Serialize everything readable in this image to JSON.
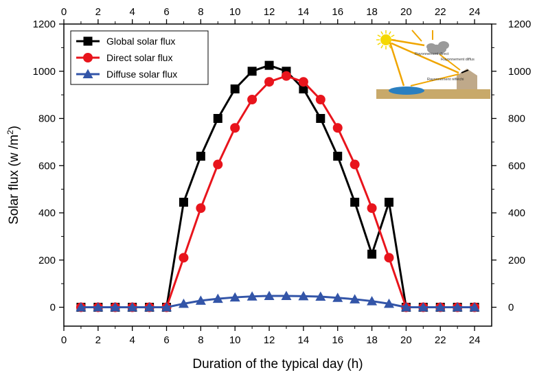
{
  "chart_data": {
    "type": "line",
    "title": "",
    "xlabel": "Duration of the typical day (h)",
    "ylabel": "Solar flux (w /m",
    "ylabel_superscript": "2",
    "ylabel_suffix": ")",
    "xlim": [
      0,
      25
    ],
    "ylim": [
      -80,
      1200
    ],
    "x_ticks": [
      0,
      2,
      4,
      6,
      8,
      10,
      12,
      14,
      16,
      18,
      20,
      22,
      24
    ],
    "y_ticks": [
      0,
      200,
      400,
      600,
      800,
      1000,
      1200
    ],
    "grid": false,
    "legend_position": "top-left",
    "x": [
      1,
      2,
      3,
      4,
      5,
      6,
      7,
      8,
      9,
      10,
      11,
      12,
      13,
      14,
      15,
      16,
      17,
      18,
      19,
      20,
      21,
      22,
      23,
      24
    ],
    "series": [
      {
        "name": "Global solar flux",
        "color": "#000000",
        "marker": "square",
        "values": [
          0,
          0,
          0,
          0,
          0,
          0,
          445,
          640,
          800,
          925,
          1000,
          1025,
          1000,
          925,
          800,
          640,
          445,
          225,
          445,
          0,
          0,
          0,
          0,
          0
        ]
      },
      {
        "name": "Direct solar flux",
        "color": "#e8141c",
        "marker": "circle",
        "values": [
          0,
          0,
          0,
          0,
          0,
          0,
          210,
          420,
          605,
          760,
          880,
          955,
          980,
          955,
          880,
          760,
          605,
          420,
          210,
          0,
          0,
          0,
          0,
          0
        ]
      },
      {
        "name": "Diffuse solar flux",
        "color": "#3355a8",
        "marker": "triangle",
        "values": [
          0,
          0,
          0,
          0,
          0,
          0,
          15,
          28,
          36,
          42,
          46,
          48,
          48,
          47,
          45,
          40,
          34,
          26,
          15,
          0,
          0,
          0,
          0,
          0
        ]
      }
    ],
    "inset": {
      "labels": [
        "Rayonnement direct",
        "Rayonnement diffus",
        "Rayonnement réfléchi"
      ],
      "colors": {
        "sun": "#f5d800",
        "rays": "#f0a500",
        "cloud": "#9a9a9a",
        "ground": "#c8a96a",
        "water": "#2a7fc0",
        "building": "#bfa98a"
      }
    }
  }
}
